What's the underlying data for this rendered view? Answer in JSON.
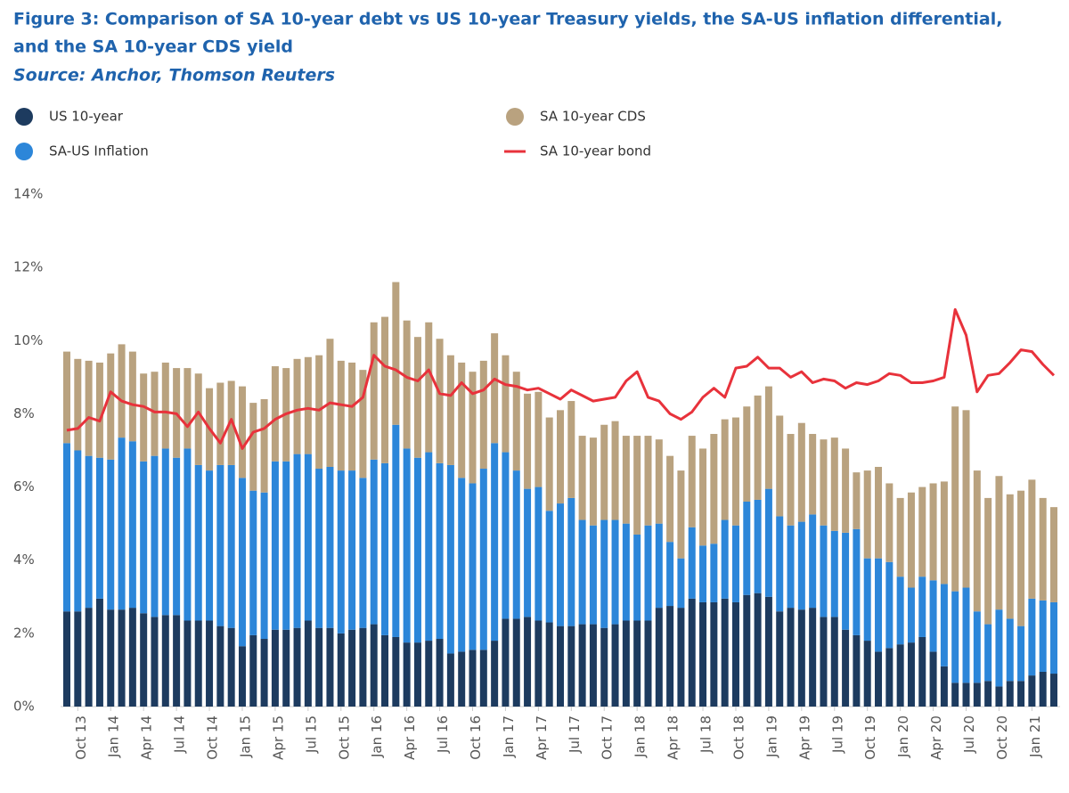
{
  "chart_data": {
    "type": "bar",
    "title": [
      "Figure 3: Comparison of SA 10-year debt vs US 10-year Treasury yields, the SA-US inflation differential,",
      "and the SA 10-year CDS yield"
    ],
    "subtitle": "Source: Anchor, Thomson Reuters",
    "stacked": true,
    "categories": [
      null,
      "Oct 13",
      null,
      null,
      "Jan 14",
      null,
      null,
      "Apr 14",
      null,
      null,
      "Jul 14",
      null,
      null,
      "Oct 14",
      null,
      null,
      "Jan 15",
      null,
      null,
      "Apr 15",
      null,
      null,
      "Jul 15",
      null,
      null,
      "Oct 15",
      null,
      null,
      "Jan 16",
      null,
      null,
      "Apr 16",
      null,
      null,
      "Jul 16",
      null,
      null,
      "Oct 16",
      null,
      null,
      "Jan 17",
      null,
      null,
      "Apr 17",
      null,
      null,
      "Jul 17",
      null,
      null,
      "Oct 17",
      null,
      null,
      "Jan 18",
      null,
      null,
      "Apr 18",
      null,
      null,
      "Jul 18",
      null,
      null,
      "Oct 18",
      null,
      null,
      "Jan 19",
      null,
      null,
      "Apr 19",
      null,
      null,
      "Jul 19",
      null,
      null,
      "Oct 19",
      null,
      null,
      "Jan 20",
      null,
      null,
      "Apr 20",
      null,
      null,
      "Jul 20",
      null,
      null,
      "Oct 20",
      null,
      null,
      "Jan 21",
      null,
      null
    ],
    "series": [
      {
        "name": "US 10-year",
        "color": "#1d3b5f",
        "type": "bar",
        "values": [
          2.6,
          2.6,
          2.7,
          2.95,
          2.65,
          2.65,
          2.7,
          2.55,
          2.45,
          2.5,
          2.5,
          2.35,
          2.35,
          2.35,
          2.2,
          2.15,
          1.65,
          1.95,
          1.85,
          2.1,
          2.1,
          2.15,
          2.35,
          2.15,
          2.15,
          2.0,
          2.1,
          2.15,
          2.25,
          1.95,
          1.9,
          1.75,
          1.75,
          1.8,
          1.85,
          1.45,
          1.5,
          1.55,
          1.55,
          1.8,
          2.4,
          2.4,
          2.45,
          2.35,
          2.3,
          2.2,
          2.2,
          2.25,
          2.25,
          2.15,
          2.25,
          2.35,
          2.35,
          2.35,
          2.7,
          2.75,
          2.7,
          2.95,
          2.85,
          2.85,
          2.95,
          2.85,
          3.05,
          3.1,
          3.0,
          2.6,
          2.7,
          2.65,
          2.7,
          2.45,
          2.45,
          2.1,
          1.95,
          1.8,
          1.5,
          1.6,
          1.7,
          1.75,
          1.9,
          1.5,
          1.1,
          0.65,
          0.65,
          0.65,
          0.7,
          0.55,
          0.7,
          0.7,
          0.85,
          0.95,
          0.9
        ]
      },
      {
        "name": "SA-US Inflation",
        "color": "#2c86d9",
        "type": "bar",
        "values": [
          4.6,
          4.4,
          4.15,
          3.85,
          4.1,
          4.7,
          4.55,
          4.15,
          4.4,
          4.55,
          4.3,
          4.7,
          4.25,
          4.1,
          4.4,
          4.45,
          4.6,
          3.95,
          4.0,
          4.6,
          4.6,
          4.75,
          4.55,
          4.35,
          4.4,
          4.45,
          4.35,
          4.1,
          4.5,
          4.7,
          5.8,
          5.3,
          5.05,
          5.15,
          4.8,
          5.15,
          4.75,
          4.55,
          4.95,
          5.4,
          4.55,
          4.05,
          3.5,
          3.65,
          3.05,
          3.35,
          3.5,
          2.85,
          2.7,
          2.95,
          2.85,
          2.65,
          2.35,
          2.6,
          2.3,
          1.75,
          1.35,
          1.95,
          1.55,
          1.6,
          2.15,
          2.1,
          2.55,
          2.55,
          2.95,
          2.6,
          2.25,
          2.4,
          2.55,
          2.5,
          2.35,
          2.65,
          2.9,
          2.25,
          2.55,
          2.35,
          1.85,
          1.5,
          1.65,
          1.95,
          2.25,
          2.5,
          2.6,
          1.95,
          1.55,
          2.1,
          1.7,
          1.5,
          2.1,
          1.95,
          1.95
        ]
      },
      {
        "name": "SA 10-year CDS",
        "color": "#b9a27f",
        "type": "bar",
        "values": [
          2.5,
          2.5,
          2.6,
          2.6,
          2.9,
          2.55,
          2.45,
          2.4,
          2.3,
          2.35,
          2.45,
          2.2,
          2.5,
          2.25,
          2.25,
          2.3,
          2.5,
          2.4,
          2.55,
          2.6,
          2.55,
          2.6,
          2.65,
          3.1,
          3.5,
          3.0,
          2.95,
          2.95,
          3.75,
          4.0,
          3.9,
          3.5,
          3.3,
          3.55,
          3.4,
          3.0,
          3.15,
          3.05,
          2.95,
          3.0,
          2.65,
          2.7,
          2.6,
          2.6,
          2.55,
          2.55,
          2.65,
          2.3,
          2.4,
          2.6,
          2.7,
          2.4,
          2.7,
          2.45,
          2.3,
          2.35,
          2.4,
          2.5,
          2.65,
          3.0,
          2.75,
          2.95,
          2.6,
          2.85,
          2.8,
          2.75,
          2.5,
          2.7,
          2.2,
          2.35,
          2.55,
          2.3,
          1.55,
          2.4,
          2.5,
          2.15,
          2.15,
          2.6,
          2.45,
          2.65,
          2.8,
          5.05,
          4.85,
          3.85,
          3.45,
          3.65,
          3.4,
          3.7,
          3.25,
          2.8,
          2.6
        ]
      },
      {
        "name": "SA 10-year bond",
        "color": "#e8323b",
        "type": "line",
        "values": [
          7.55,
          7.6,
          7.9,
          7.8,
          8.6,
          8.35,
          8.25,
          8.2,
          8.05,
          8.05,
          8.0,
          7.65,
          8.05,
          7.6,
          7.2,
          7.85,
          7.05,
          7.5,
          7.6,
          7.85,
          8.0,
          8.1,
          8.15,
          8.1,
          8.3,
          8.25,
          8.2,
          8.45,
          9.6,
          9.3,
          9.2,
          9.0,
          8.9,
          9.2,
          8.55,
          8.5,
          8.85,
          8.55,
          8.65,
          8.95,
          8.8,
          8.75,
          8.65,
          8.7,
          8.55,
          8.4,
          8.65,
          8.5,
          8.35,
          8.4,
          8.45,
          8.9,
          9.15,
          8.45,
          8.35,
          8.0,
          7.85,
          8.05,
          8.45,
          8.7,
          8.45,
          9.25,
          9.3,
          9.55,
          9.25,
          9.25,
          9.0,
          9.15,
          8.85,
          8.95,
          8.9,
          8.7,
          8.85,
          8.8,
          8.9,
          9.1,
          9.05,
          8.85,
          8.85,
          8.9,
          9.0,
          10.85,
          10.15,
          8.6,
          9.05,
          9.1,
          9.4,
          9.75,
          9.7,
          9.35,
          9.05
        ]
      }
    ],
    "ylim": [
      0,
      14
    ],
    "yticks": [
      {
        "value": 0,
        "label": "0%"
      },
      {
        "value": 2,
        "label": "2%"
      },
      {
        "value": 4,
        "label": "4%"
      },
      {
        "value": 6,
        "label": "6%"
      },
      {
        "value": 8,
        "label": "8%"
      },
      {
        "value": 10,
        "label": "10%"
      },
      {
        "value": 12,
        "label": "12%"
      },
      {
        "value": 14,
        "label": "14%"
      }
    ],
    "grid": false,
    "legend": "top"
  }
}
